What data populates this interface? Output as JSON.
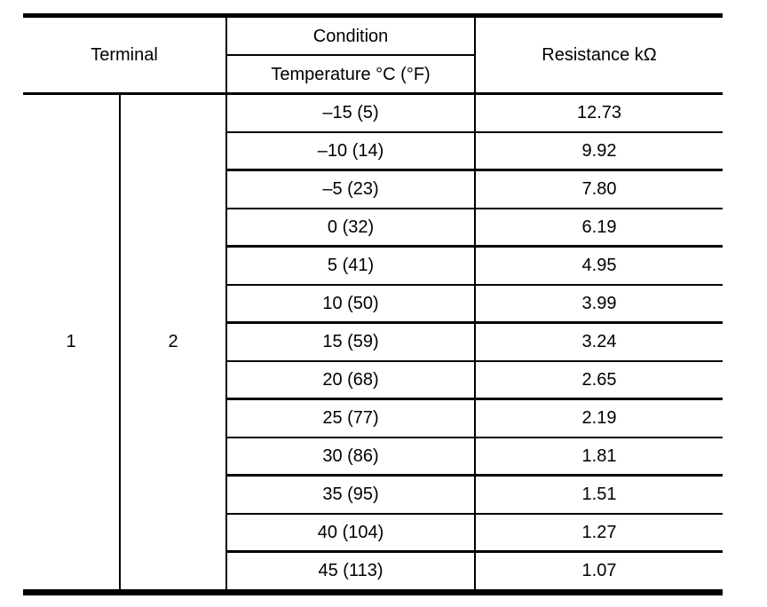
{
  "table": {
    "header": {
      "terminal": "Terminal",
      "condition": "Condition",
      "temperature": "Temperature °C (°F)",
      "resistance": "Resistance kΩ"
    },
    "terminal_values": {
      "left": "1",
      "right": "2"
    },
    "rows": [
      {
        "temp": "–15 (5)",
        "res": "12.73"
      },
      {
        "temp": "–10 (14)",
        "res": "9.92"
      },
      {
        "temp": "–5 (23)",
        "res": "7.80"
      },
      {
        "temp": "0 (32)",
        "res": "6.19"
      },
      {
        "temp": "5 (41)",
        "res": "4.95"
      },
      {
        "temp": "10 (50)",
        "res": "3.99"
      },
      {
        "temp": "15 (59)",
        "res": "3.24"
      },
      {
        "temp": "20 (68)",
        "res": "2.65"
      },
      {
        "temp": "25 (77)",
        "res": "2.19"
      },
      {
        "temp": "30 (86)",
        "res": "1.81"
      },
      {
        "temp": "35 (95)",
        "res": "1.51"
      },
      {
        "temp": "40 (104)",
        "res": "1.27"
      },
      {
        "temp": "45 (113)",
        "res": "1.07"
      }
    ]
  },
  "colors": {
    "line": "#000000",
    "text": "#000000",
    "background": "#ffffff"
  }
}
